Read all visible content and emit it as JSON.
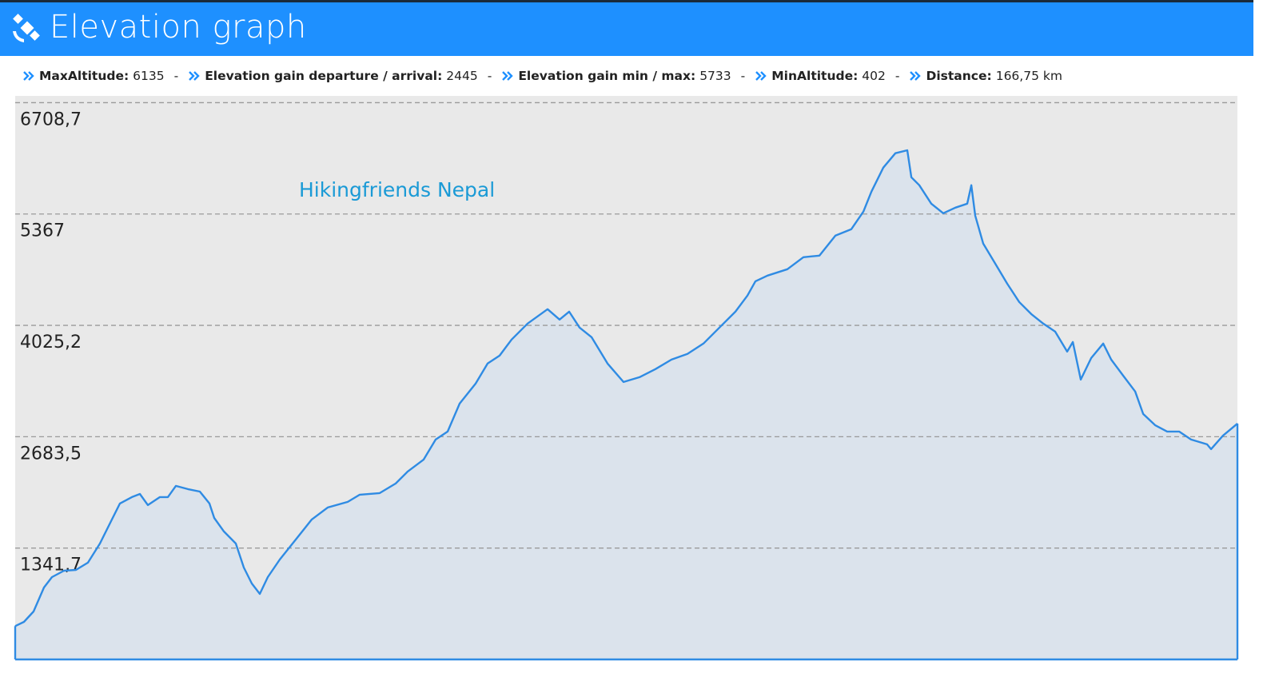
{
  "header": {
    "title": "Elevation graph"
  },
  "stats": {
    "separator": "-",
    "items": [
      {
        "label": "MaxAltitude:",
        "value": 6135
      },
      {
        "label": "Elevation gain departure / arrival:",
        "value": 2445
      },
      {
        "label": "Elevation gain min / max:",
        "value": 5733
      },
      {
        "label": "MinAltitude:",
        "value": 402
      },
      {
        "label": "Distance:",
        "value": "166,75 km"
      }
    ]
  },
  "chart_data": {
    "type": "area",
    "annotation": "Hikingfriends Nepal",
    "color": "#2f8be3",
    "fill": "#dbe3ec",
    "background": "#e9e9e9",
    "grid": true,
    "xlim": [
      0,
      166.75
    ],
    "ylim": [
      0,
      6790
    ],
    "yticks": [
      {
        "value": 1341.7,
        "label": "1341,7"
      },
      {
        "value": 2683.5,
        "label": "2683,5"
      },
      {
        "value": 4025.2,
        "label": "4025,2"
      },
      5367,
      {
        "value": 6708.7,
        "label": "6708,7"
      }
    ],
    "x": [
      0,
      1.2,
      2.51,
      3.93,
      5.02,
      6.65,
      8.29,
      9.92,
      11.56,
      13.2,
      14.29,
      15.92,
      17.01,
      18.1,
      19.74,
      20.83,
      21.92,
      23.56,
      25.19,
      26.5,
      27.16,
      28.47,
      30.1,
      31.19,
      32.28,
      33.37,
      34.46,
      36.1,
      38.28,
      40.46,
      42.64,
      45.37,
      47.0,
      49.73,
      51.91,
      53.55,
      55.73,
      57.37,
      59.0,
      60.64,
      62.82,
      64.45,
      66.09,
      67.72,
      69.91,
      72.63,
      74.27,
      75.58,
      76.99,
      78.63,
      80.81,
      82.99,
      85.17,
      87.35,
      89.54,
      91.72,
      93.9,
      96.08,
      98.26,
      99.9,
      100.99,
      102.63,
      105.35,
      107.53,
      109.72,
      111.9,
      114.08,
      115.72,
      116.81,
      118.44,
      120.08,
      121.71,
      122.26,
      123.35,
      124.98,
      126.62,
      128.26,
      129.89,
      130.44,
      130.98,
      132.07,
      133.71,
      135.34,
      136.98,
      138.62,
      140.25,
      141.89,
      143.52,
      144.29,
      145.38,
      146.8,
      148.44,
      149.53,
      151.16,
      152.8,
      153.89,
      155.52,
      157.16,
      158.8,
      160.43,
      162.61,
      163.15,
      164.79,
      166.75
    ],
    "values": [
      402,
      453,
      578,
      867,
      992,
      1069,
      1079,
      1166,
      1397,
      1686,
      1879,
      1956,
      1994,
      1860,
      1956,
      1956,
      2091,
      2052,
      2023,
      1879,
      1705,
      1542,
      1397,
      1108,
      915,
      790,
      992,
      1204,
      1445,
      1686,
      1831,
      1898,
      1985,
      2004,
      2120,
      2264,
      2409,
      2650,
      2746,
      3083,
      3324,
      3565,
      3661,
      3854,
      4047,
      4220,
      4095,
      4191,
      3999,
      3883,
      3565,
      3343,
      3401,
      3498,
      3613,
      3681,
      3806,
      3999,
      4191,
      4384,
      4557,
      4625,
      4702,
      4846,
      4866,
      5107,
      5184,
      5396,
      5636,
      5926,
      6099,
      6135,
      5810,
      5714,
      5492,
      5376,
      5444,
      5492,
      5714,
      5347,
      5010,
      4769,
      4528,
      4307,
      4162,
      4047,
      3950,
      3709,
      3825,
      3372,
      3632,
      3806,
      3613,
      3420,
      3228,
      2958,
      2823,
      2746,
      2746,
      2650,
      2592,
      2534,
      2698,
      2842
    ]
  }
}
